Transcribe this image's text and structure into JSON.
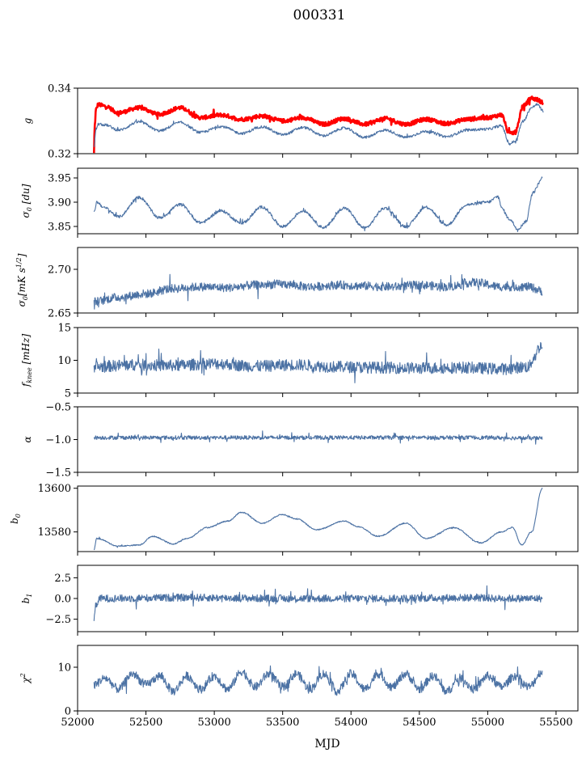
{
  "title": "000331",
  "colors": {
    "series": "#4c72a4",
    "overlay": "#ff0000",
    "axes": "#000000"
  },
  "chart_data": [
    {
      "type": "line",
      "ylabel": "g",
      "ylim": [
        0.32,
        0.34
      ],
      "yticks": [
        {
          "value": 0.32,
          "label": "0.32"
        },
        {
          "value": 0.34,
          "label": "0.34"
        }
      ],
      "series": [
        {
          "color": "#ff0000",
          "style": "thick",
          "noise": 0.0006,
          "x": [
            52120,
            52125,
            52135,
            52150,
            52200,
            52300,
            52450,
            52600,
            52750,
            52900,
            53050,
            53200,
            53350,
            53500,
            53650,
            53800,
            53950,
            54100,
            54250,
            54400,
            54550,
            54700,
            54850,
            55000,
            55100,
            55160,
            55200,
            55260,
            55320,
            55360,
            55410
          ],
          "y": [
            0.32,
            0.3285,
            0.3335,
            0.335,
            0.3345,
            0.3325,
            0.334,
            0.332,
            0.334,
            0.331,
            0.3318,
            0.3305,
            0.3315,
            0.33,
            0.331,
            0.329,
            0.3307,
            0.329,
            0.3307,
            0.329,
            0.3305,
            0.3292,
            0.3305,
            0.331,
            0.3318,
            0.326,
            0.3265,
            0.3345,
            0.337,
            0.3365,
            0.3355
          ]
        },
        {
          "color": "#4c72a4",
          "style": "thin",
          "noise": 0.0004,
          "x": [
            52120,
            52135,
            52150,
            52200,
            52300,
            52450,
            52600,
            52750,
            52900,
            53050,
            53200,
            53350,
            53500,
            53650,
            53800,
            53950,
            54100,
            54250,
            54400,
            54550,
            54700,
            54850,
            55000,
            55100,
            55160,
            55200,
            55260,
            55320,
            55360,
            55410
          ],
          "y": [
            0.322,
            0.3275,
            0.329,
            0.3288,
            0.3272,
            0.3297,
            0.327,
            0.3295,
            0.3265,
            0.3283,
            0.3262,
            0.3282,
            0.3258,
            0.328,
            0.3255,
            0.3278,
            0.325,
            0.3272,
            0.325,
            0.3268,
            0.3252,
            0.3272,
            0.3275,
            0.3285,
            0.323,
            0.3238,
            0.33,
            0.334,
            0.335,
            0.333
          ]
        }
      ]
    },
    {
      "type": "line",
      "ylabel": "σ0 [du]",
      "ylim": [
        3.835,
        3.97
      ],
      "yticks": [
        {
          "value": 3.85,
          "label": "3.85"
        },
        {
          "value": 3.9,
          "label": "3.90"
        },
        {
          "value": 3.95,
          "label": "3.95"
        }
      ],
      "series": [
        {
          "color": "#4c72a4",
          "style": "thin",
          "noise": 0.003,
          "x": [
            52120,
            52140,
            52200,
            52300,
            52450,
            52600,
            52750,
            52900,
            53050,
            53200,
            53350,
            53500,
            53650,
            53800,
            53950,
            54100,
            54250,
            54400,
            54550,
            54700,
            54850,
            55000,
            55080,
            55100,
            55160,
            55220,
            55280,
            55330,
            55400
          ],
          "y": [
            3.878,
            3.9,
            3.888,
            3.87,
            3.91,
            3.868,
            3.895,
            3.858,
            3.882,
            3.857,
            3.89,
            3.85,
            3.882,
            3.848,
            3.888,
            3.847,
            3.888,
            3.85,
            3.89,
            3.853,
            3.895,
            3.9,
            3.912,
            3.888,
            3.865,
            3.845,
            3.86,
            3.92,
            3.95
          ]
        }
      ]
    },
    {
      "type": "line",
      "ylabel": "σ0[mK s^1/2]",
      "ylim": [
        2.65,
        2.725
      ],
      "yticks": [
        {
          "value": 2.65,
          "label": "2.65"
        },
        {
          "value": 2.7,
          "label": "2.70"
        }
      ],
      "series": [
        {
          "color": "#4c72a4",
          "style": "thin",
          "noise": 0.005,
          "x": [
            52120,
            52300,
            52500,
            52700,
            52900,
            53100,
            53300,
            53500,
            53700,
            53900,
            54100,
            54300,
            54500,
            54700,
            54900,
            55100,
            55300,
            55400
          ],
          "y": [
            2.663,
            2.668,
            2.672,
            2.678,
            2.68,
            2.679,
            2.682,
            2.683,
            2.68,
            2.682,
            2.681,
            2.68,
            2.682,
            2.68,
            2.685,
            2.68,
            2.68,
            2.675
          ]
        }
      ]
    },
    {
      "type": "line",
      "ylabel": "fknee [mHz]",
      "ylim": [
        5,
        15
      ],
      "yticks": [
        {
          "value": 5,
          "label": "5"
        },
        {
          "value": 10,
          "label": "10"
        },
        {
          "value": 15,
          "label": "15"
        }
      ],
      "series": [
        {
          "color": "#4c72a4",
          "style": "thin",
          "noise": 0.9,
          "x": [
            52120,
            52400,
            52700,
            53000,
            53300,
            53600,
            53900,
            54200,
            54500,
            54800,
            55100,
            55300,
            55340,
            55380,
            55400
          ],
          "y": [
            9.0,
            9.3,
            9.2,
            9.5,
            9.1,
            9.3,
            9.0,
            8.9,
            8.8,
            8.9,
            8.7,
            9.0,
            10.5,
            12.0,
            12.5
          ]
        }
      ]
    },
    {
      "type": "line",
      "ylabel": "α",
      "ylim": [
        -1.5,
        -0.5
      ],
      "yticks": [
        {
          "value": -1.5,
          "label": "−1.5"
        },
        {
          "value": -1.0,
          "label": "−1.0"
        },
        {
          "value": -0.5,
          "label": "−0.5"
        }
      ],
      "series": [
        {
          "color": "#4c72a4",
          "style": "thin",
          "noise": 0.03,
          "x": [
            52120,
            52800,
            53500,
            54200,
            54900,
            55400
          ],
          "y": [
            -0.97,
            -0.97,
            -0.97,
            -0.97,
            -0.97,
            -0.98
          ]
        }
      ]
    },
    {
      "type": "line",
      "ylabel": "b0",
      "ylim": [
        13571,
        13601
      ],
      "yticks": [
        {
          "value": 13580,
          "label": "13580"
        },
        {
          "value": 13600,
          "label": "13600"
        }
      ],
      "series": [
        {
          "color": "#4c72a4",
          "style": "thin",
          "noise": 0.25,
          "x": [
            52120,
            52140,
            52300,
            52450,
            52550,
            52700,
            52800,
            52950,
            53100,
            53200,
            53350,
            53500,
            53600,
            53750,
            53950,
            54050,
            54200,
            54400,
            54550,
            54750,
            54950,
            55100,
            55180,
            55250,
            55320,
            55400
          ],
          "y": [
            13572,
            13577,
            13573.5,
            13574,
            13578,
            13574.5,
            13577,
            13582,
            13585,
            13589,
            13584,
            13588,
            13586,
            13581,
            13585,
            13582.5,
            13578,
            13584,
            13577,
            13582,
            13575,
            13580,
            13582,
            13574,
            13580,
            13600
          ]
        }
      ]
    },
    {
      "type": "line",
      "ylabel": "b1",
      "ylim": [
        -4.0,
        4.0
      ],
      "yticks": [
        {
          "value": -2.5,
          "label": "−2.5"
        },
        {
          "value": 0.0,
          "label": "0.0"
        },
        {
          "value": 2.5,
          "label": "2.5"
        }
      ],
      "series": [
        {
          "color": "#4c72a4",
          "style": "thin",
          "noise": 0.45,
          "x": [
            52120,
            52135,
            52160,
            52800,
            53500,
            54200,
            54900,
            55100,
            55300,
            55400
          ],
          "y": [
            -2.6,
            -0.8,
            0.0,
            0.1,
            0.0,
            0.0,
            0.1,
            0.0,
            0.0,
            0.0
          ]
        }
      ]
    },
    {
      "type": "line",
      "ylabel": "χ²",
      "ylim": [
        0,
        15
      ],
      "yticks": [
        {
          "value": 0,
          "label": "0"
        },
        {
          "value": 10,
          "label": "10"
        }
      ],
      "series": [
        {
          "color": "#4c72a4",
          "style": "thin",
          "noise": 1.0,
          "x": [
            52120,
            52200,
            52300,
            52400,
            52500,
            52600,
            52700,
            52800,
            52900,
            53000,
            53100,
            53200,
            53300,
            53400,
            53500,
            53600,
            53700,
            53800,
            53900,
            54000,
            54100,
            54200,
            54300,
            54400,
            54500,
            54600,
            54700,
            54800,
            54900,
            55000,
            55100,
            55200,
            55300,
            55400
          ],
          "y": [
            6,
            7.5,
            5,
            8.5,
            6,
            8,
            4.5,
            8,
            5,
            8,
            5,
            9,
            5.5,
            8.5,
            5.5,
            8.5,
            5,
            8.5,
            4.5,
            8.5,
            5,
            8.5,
            5.5,
            8.5,
            5,
            8,
            4.5,
            7.5,
            5,
            8,
            5.5,
            8,
            5.5,
            9
          ]
        }
      ]
    }
  ],
  "xaxis": {
    "label": "MJD",
    "xlim": [
      52000,
      55660
    ],
    "ticks": [
      {
        "value": 52000,
        "label": "52000"
      },
      {
        "value": 52500,
        "label": "52500"
      },
      {
        "value": 53000,
        "label": "53000"
      },
      {
        "value": 53500,
        "label": "53500"
      },
      {
        "value": 54000,
        "label": "54000"
      },
      {
        "value": 54500,
        "label": "54500"
      },
      {
        "value": 55000,
        "label": "55000"
      },
      {
        "value": 55500,
        "label": "55500"
      }
    ]
  }
}
